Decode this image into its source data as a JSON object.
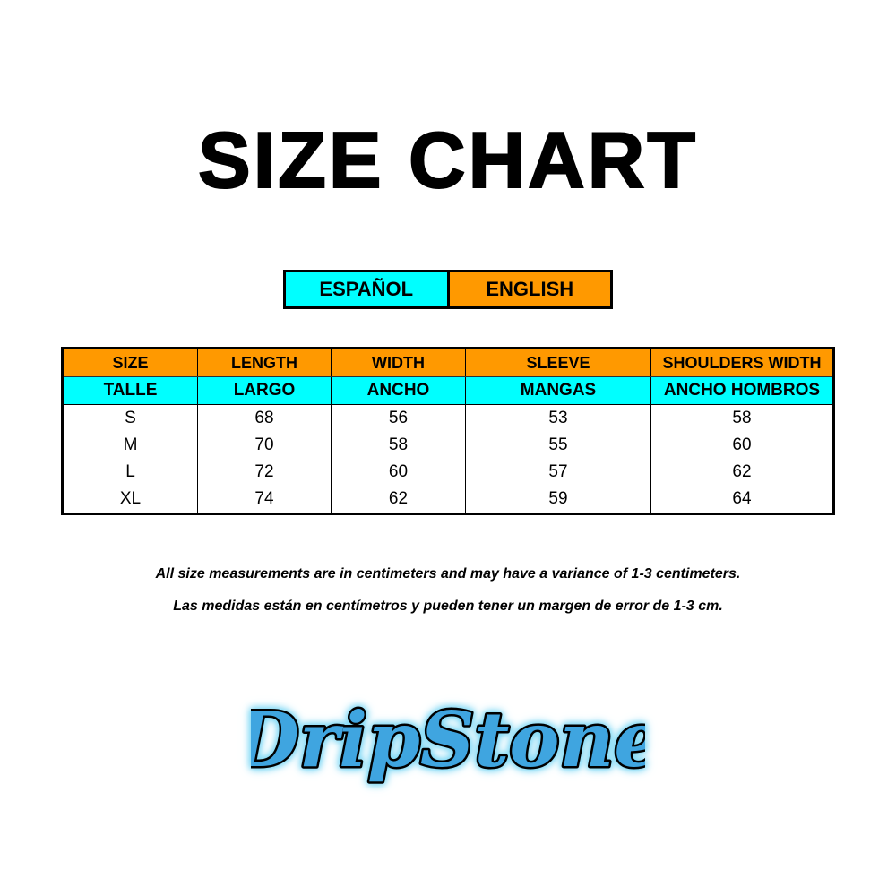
{
  "title": "SIZE CHART",
  "languages": {
    "spanish": "ESPAÑOL",
    "english": "ENGLISH"
  },
  "colors": {
    "english": "#ff9900",
    "spanish": "#00ffff"
  },
  "table": {
    "headers_en": [
      "SIZE",
      "LENGTH",
      "WIDTH",
      "SLEEVE",
      "SHOULDERS WIDTH"
    ],
    "headers_es": [
      "TALLE",
      "LARGO",
      "ANCHO",
      "MANGAS",
      "ANCHO HOMBROS"
    ],
    "rows": [
      [
        "S",
        "68",
        "56",
        "53",
        "58"
      ],
      [
        "M",
        "70",
        "58",
        "55",
        "60"
      ],
      [
        "L",
        "72",
        "60",
        "57",
        "62"
      ],
      [
        "XL",
        "74",
        "62",
        "59",
        "64"
      ]
    ]
  },
  "notes": {
    "english": "All size measurements are in centimeters and may have a variance of 1-3 centimeters.",
    "spanish": "Las medidas están en centímetros y pueden tener un margen de error de 1-3 cm."
  },
  "logo": {
    "text": "DripStone"
  }
}
